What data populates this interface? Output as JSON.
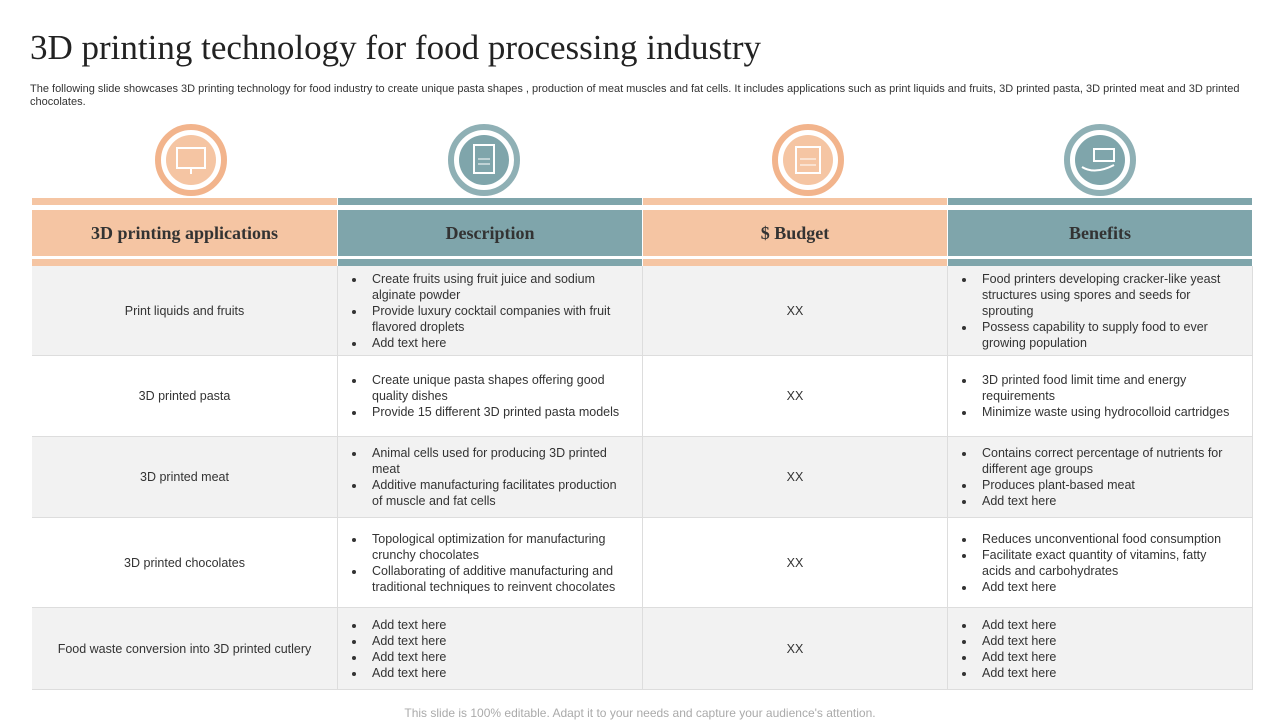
{
  "header": {
    "title": "3D printing technology for food processing industry",
    "subtitle": "The following slide showcases 3D printing technology for food industry to create unique pasta shapes , production of meat muscles and fat cells. It includes applications such as print liquids and fruits, 3D printed pasta, 3D printed meat and 3D printed chocolates."
  },
  "table": {
    "headers": [
      "3D printing applications",
      "Description",
      "$ Budget",
      "Benefits"
    ],
    "rows": [
      {
        "application": "Print liquids and fruits",
        "description": [
          "Create fruits using fruit juice and sodium alginate powder",
          "Provide  luxury cocktail companies with fruit flavored  droplets",
          "Add text here"
        ],
        "budget": "XX",
        "benefits": [
          "Food printers developing cracker-like yeast structures using spores and seeds for sprouting",
          "Possess capability to supply food to ever growing population"
        ]
      },
      {
        "application": "3D printed pasta",
        "description": [
          "Create unique  pasta shapes offering good quality dishes",
          "Provide  15 different  3D printed pasta models"
        ],
        "budget": "XX",
        "benefits": [
          "3D printed food limit time and energy requirements",
          "Minimize waste using hydrocolloid cartridges"
        ]
      },
      {
        "application": "3D printed meat",
        "description": [
          "Animal cells used for producing 3D printed meat",
          "Additive manufacturing facilitates production of muscle and fat cells"
        ],
        "budget": "XX",
        "benefits": [
          "Contains correct percentage  of nutrients for different age groups",
          "Produces plant-based meat",
          "Add text here"
        ]
      },
      {
        "application": "3D printed chocolates",
        "description": [
          "Topological optimization for manufacturing crunchy chocolates",
          "Collaborating  of additive  manufacturing and traditional techniques to reinvent  chocolates"
        ],
        "budget": "XX",
        "benefits": [
          "Reduces unconventional food consumption",
          "Facilitate exact quantity of vitamins, fatty acids and carbohydrates",
          "Add text here"
        ]
      },
      {
        "application": "Food waste conversion  into 3D printed cutlery",
        "description": [
          "Add text here",
          "Add text here",
          "Add text here",
          "Add text here"
        ],
        "budget": "XX",
        "benefits": [
          "Add text here",
          "Add text here",
          "Add text here",
          "Add text here"
        ]
      }
    ]
  },
  "footer": "This slide is 100% editable. Adapt it to your needs and capture your audience's attention."
}
